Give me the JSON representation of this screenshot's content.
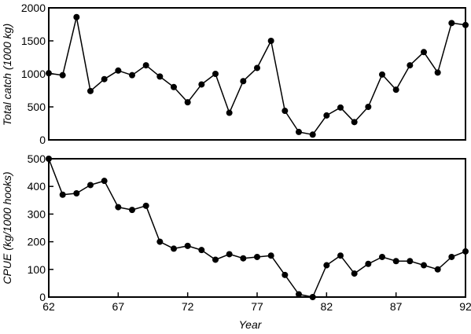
{
  "chart_data": [
    {
      "type": "line",
      "panel": "top",
      "ylabel": "Total catch (1000 kg)",
      "xlabel": "",
      "xlim": [
        62,
        92
      ],
      "ylim": [
        0,
        2000
      ],
      "yticks": [
        "0",
        "500",
        "1000",
        "1500",
        "2000"
      ],
      "series": [
        {
          "x": [
            62,
            63,
            64,
            65,
            66,
            67,
            68,
            69,
            70,
            71,
            72,
            73,
            74,
            75,
            76,
            77,
            78,
            79,
            80,
            81,
            82,
            83,
            84,
            85,
            86,
            87,
            88,
            89,
            90,
            91,
            92
          ],
          "y": [
            1010,
            980,
            1860,
            740,
            920,
            1050,
            980,
            1130,
            960,
            800,
            570,
            840,
            1000,
            410,
            890,
            1090,
            1500,
            440,
            120,
            80,
            370,
            490,
            270,
            500,
            990,
            760,
            1130,
            1330,
            1020,
            1770,
            1740
          ]
        }
      ]
    },
    {
      "type": "line",
      "panel": "bottom",
      "ylabel": "CPUE (kg/1000 hooks)",
      "xlabel": "Year",
      "xlim": [
        62,
        92
      ],
      "ylim": [
        0,
        500
      ],
      "xticks": [
        "62",
        "67",
        "72",
        "77",
        "82",
        "87",
        "92"
      ],
      "yticks": [
        "0",
        "100",
        "200",
        "300",
        "400",
        "500"
      ],
      "series": [
        {
          "x": [
            62,
            63,
            64,
            65,
            66,
            67,
            68,
            69,
            70,
            71,
            72,
            73,
            74,
            75,
            76,
            77,
            78,
            79,
            80,
            81,
            82,
            83,
            84,
            85,
            86,
            87,
            88,
            89,
            90,
            91,
            92
          ],
          "y": [
            500,
            370,
            375,
            405,
            420,
            325,
            315,
            330,
            200,
            175,
            185,
            170,
            135,
            155,
            140,
            145,
            150,
            80,
            10,
            0,
            115,
            150,
            85,
            120,
            145,
            130,
            130,
            115,
            100,
            145,
            165
          ]
        }
      ]
    }
  ]
}
